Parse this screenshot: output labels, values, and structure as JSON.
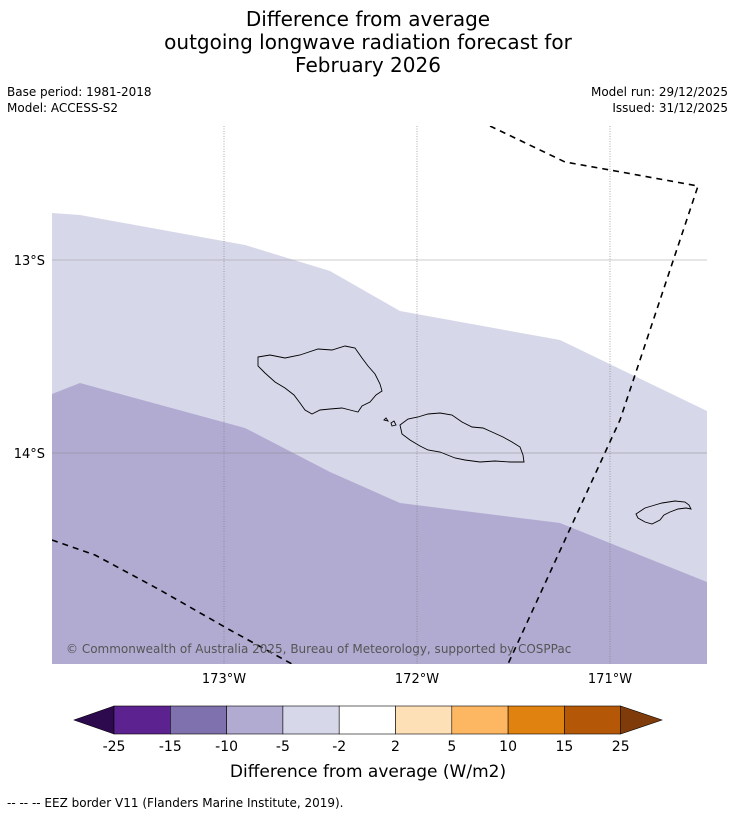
{
  "title": {
    "line1": "Difference from average",
    "line2": "outgoing longwave radiation forecast for",
    "line3": "February 2026"
  },
  "meta": {
    "base_period": "Base period: 1981-2018",
    "model": "Model: ACCESS-S2",
    "model_run": "Model run: 29/12/2025",
    "issued": "Issued: 31/12/2025"
  },
  "map": {
    "lon_labels": [
      "173°W",
      "172°W",
      "171°W"
    ],
    "lat_labels": [
      "13°S",
      "14°S"
    ],
    "copyright": "© Commonwealth of Australia 2025, Bureau of Meteorology, supported by COSPPac",
    "anomaly_zones": [
      {
        "name": "-10 to -5",
        "color": "#b1abd2"
      },
      {
        "name": "-5 to -2",
        "color": "#d7d7ea"
      }
    ]
  },
  "colorbar": {
    "ticks": [
      "-25",
      "-15",
      "-10",
      "-5",
      "-2",
      "2",
      "5",
      "10",
      "15",
      "25"
    ],
    "colors": [
      "#5c2390",
      "#7f70ae",
      "#b1abd2",
      "#d7d7ea",
      "#ffffff",
      "#fde0b5",
      "#fdb763",
      "#e0820f",
      "#b45808"
    ],
    "extend_low_color": "#2c0a4d",
    "extend_high_color": "#7f3b0a",
    "label": "Difference from average (W/m2)"
  },
  "footnote": "-- -- -- EEZ border V11 (Flanders Marine Institute, 2019)."
}
